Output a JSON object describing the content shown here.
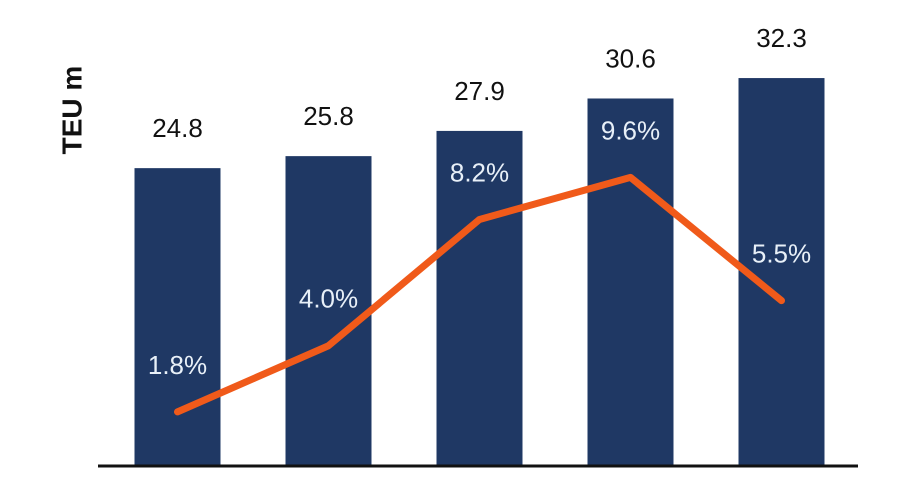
{
  "chart_data": {
    "type": "bar",
    "y_label": "TEU m",
    "categories": [
      null,
      null,
      null,
      null,
      null
    ],
    "ylim": [
      0,
      38.8
    ],
    "y2lim": [
      0,
      15.5
    ],
    "series": [
      {
        "type": "bar",
        "color": "#1f3864",
        "values": [
          24.8,
          25.8,
          27.9,
          30.6,
          32.3
        ]
      },
      {
        "type": "line",
        "axis": "y2",
        "color": "#f05a1a",
        "values": [
          1.8,
          4.0,
          8.2,
          9.6,
          5.5
        ],
        "value_labels": [
          "1.8%",
          "4.0%",
          "8.2%",
          "9.6%",
          "5.5%"
        ]
      }
    ]
  }
}
